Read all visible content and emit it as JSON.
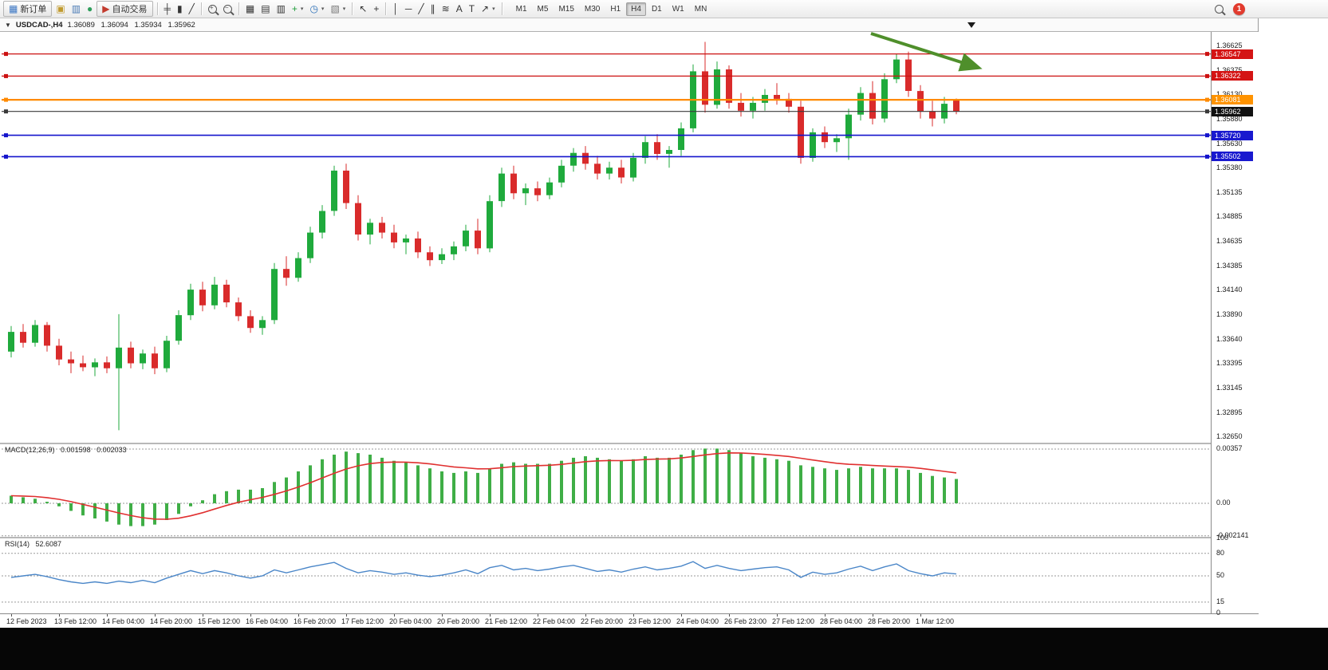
{
  "toolbar": {
    "notification_count": "1",
    "timeframes": [
      "M1",
      "M5",
      "M15",
      "M30",
      "H1",
      "H4",
      "D1",
      "W1",
      "MN"
    ],
    "active_timeframe": "H4",
    "items": [
      {
        "t": "btn",
        "name": "new-order-button",
        "icon": "▦",
        "icon_color": "#3a76c4",
        "label": "新订单"
      },
      {
        "t": "icon",
        "name": "metaeditor-icon",
        "glyph": "▣",
        "color": "#c09a2e"
      },
      {
        "t": "icon",
        "name": "market-watch-icon",
        "glyph": "▥",
        "color": "#4a7ab5"
      },
      {
        "t": "icon",
        "name": "data-window-icon",
        "glyph": "●",
        "color": "#2e9e5b"
      },
      {
        "t": "btn",
        "name": "autotrading-button",
        "icon": "▶",
        "icon_color": "#c23b2e",
        "label": "自动交易"
      },
      {
        "t": "sep"
      },
      {
        "t": "icon",
        "name": "bar-chart-mode-icon",
        "glyph": "╪"
      },
      {
        "t": "icon",
        "name": "candlestick-mode-icon",
        "glyph": "▮"
      },
      {
        "t": "icon",
        "name": "line-chart-mode-icon",
        "glyph": "╱"
      },
      {
        "t": "sep"
      },
      {
        "t": "mag",
        "name": "zoom-in-button",
        "label": "+"
      },
      {
        "t": "mag",
        "name": "zoom-out-button",
        "label": "−"
      },
      {
        "t": "sep"
      },
      {
        "t": "icon",
        "name": "tile-windows-icon",
        "glyph": "▦"
      },
      {
        "t": "icon",
        "name": "arrange-charts-icon",
        "glyph": "▤"
      },
      {
        "t": "icon",
        "name": "chart-list-icon",
        "glyph": "▥"
      },
      {
        "t": "icon",
        "name": "add-indicator-button",
        "glyph": "+",
        "color": "#1f9e3a",
        "caret": true
      },
      {
        "t": "icon",
        "name": "periods-button",
        "glyph": "◷",
        "color": "#2a6fb8",
        "caret": true
      },
      {
        "t": "icon",
        "name": "template-button",
        "glyph": "▧",
        "color": "#777777",
        "caret": true
      },
      {
        "t": "sep"
      },
      {
        "t": "icon",
        "name": "cursor-icon",
        "glyph": "↖"
      },
      {
        "t": "icon",
        "name": "crosshair-icon",
        "glyph": "+"
      },
      {
        "t": "sep"
      },
      {
        "t": "icon",
        "name": "vertical-line-tool-icon",
        "glyph": "│"
      },
      {
        "t": "icon",
        "name": "horizontal-line-tool-icon",
        "glyph": "─"
      },
      {
        "t": "icon",
        "name": "trendline-tool-icon",
        "glyph": "╱"
      },
      {
        "t": "icon",
        "name": "equidistant-channel-tool-icon",
        "glyph": "∥"
      },
      {
        "t": "icon",
        "name": "fibonacci-tool-icon",
        "glyph": "≋"
      },
      {
        "t": "icon",
        "name": "text-tool-icon",
        "glyph": "A"
      },
      {
        "t": "icon",
        "name": "label-tool-icon",
        "glyph": "T"
      },
      {
        "t": "icon",
        "name": "shapes-button",
        "glyph": "↗",
        "caret": true
      },
      {
        "t": "sep"
      }
    ]
  },
  "chart": {
    "symbol_period": "USDCAD-,H4",
    "open": "1.36089",
    "high": "1.36094",
    "low": "1.35934",
    "close": "1.35962"
  },
  "chart_data": {
    "type": "candlestick",
    "symbol": "USDCAD-",
    "timeframe": "H4",
    "bull_color": "#1faa3c",
    "bear_color": "#d92b2b",
    "price_ticks": [
      "1.36625",
      "1.36375",
      "1.36130",
      "1.35880",
      "1.35630",
      "1.35380",
      "1.35135",
      "1.34885",
      "1.34635",
      "1.34385",
      "1.34140",
      "1.33890",
      "1.33640",
      "1.33395",
      "1.33145",
      "1.32895",
      "1.32650"
    ],
    "x_labels": [
      "12 Feb 2023",
      "13 Feb 12:00",
      "14 Feb 04:00",
      "14 Feb 20:00",
      "15 Feb 12:00",
      "16 Feb 04:00",
      "16 Feb 20:00",
      "17 Feb 12:00",
      "20 Feb 04:00",
      "20 Feb 20:00",
      "21 Feb 12:00",
      "22 Feb 04:00",
      "22 Feb 20:00",
      "23 Feb 12:00",
      "24 Feb 04:00",
      "26 Feb 23:00",
      "27 Feb 12:00",
      "28 Feb 04:00",
      "28 Feb 20:00",
      "1 Mar 12:00"
    ],
    "candles": [
      [
        1.3352,
        1.3378,
        1.3346,
        1.3372
      ],
      [
        1.3372,
        1.338,
        1.3356,
        1.3361
      ],
      [
        1.3361,
        1.3384,
        1.3357,
        1.3379
      ],
      [
        1.3379,
        1.3382,
        1.3352,
        1.3358
      ],
      [
        1.3358,
        1.3365,
        1.3338,
        1.3344
      ],
      [
        1.3344,
        1.3352,
        1.333,
        1.334
      ],
      [
        1.334,
        1.3348,
        1.3332,
        1.3336
      ],
      [
        1.3336,
        1.3345,
        1.3327,
        1.3341
      ],
      [
        1.3341,
        1.3347,
        1.333,
        1.3335
      ],
      [
        1.3335,
        1.339,
        1.3272,
        1.3356
      ],
      [
        1.3356,
        1.3362,
        1.3335,
        1.334
      ],
      [
        1.334,
        1.3354,
        1.3334,
        1.335
      ],
      [
        1.335,
        1.3357,
        1.3329,
        1.3335
      ],
      [
        1.3335,
        1.3368,
        1.3331,
        1.3363
      ],
      [
        1.3363,
        1.3394,
        1.3359,
        1.3389
      ],
      [
        1.3389,
        1.3421,
        1.3384,
        1.3415
      ],
      [
        1.3415,
        1.3423,
        1.3393,
        1.3399
      ],
      [
        1.3399,
        1.3428,
        1.3395,
        1.342
      ],
      [
        1.342,
        1.3425,
        1.3397,
        1.3402
      ],
      [
        1.3402,
        1.3407,
        1.3383,
        1.3388
      ],
      [
        1.3388,
        1.3394,
        1.3371,
        1.3376
      ],
      [
        1.3376,
        1.3388,
        1.3369,
        1.3384
      ],
      [
        1.3384,
        1.3442,
        1.338,
        1.3436
      ],
      [
        1.3436,
        1.3449,
        1.3419,
        1.3427
      ],
      [
        1.3427,
        1.3453,
        1.3423,
        1.3447
      ],
      [
        1.3447,
        1.3479,
        1.3442,
        1.3473
      ],
      [
        1.3473,
        1.3501,
        1.3467,
        1.3495
      ],
      [
        1.3495,
        1.3541,
        1.349,
        1.3536
      ],
      [
        1.3536,
        1.3543,
        1.3497,
        1.3503
      ],
      [
        1.3503,
        1.3511,
        1.3465,
        1.3471
      ],
      [
        1.3471,
        1.3487,
        1.3461,
        1.3483
      ],
      [
        1.3483,
        1.3489,
        1.3467,
        1.3473
      ],
      [
        1.3473,
        1.3481,
        1.3457,
        1.3463
      ],
      [
        1.3463,
        1.3471,
        1.3451,
        1.3467
      ],
      [
        1.3467,
        1.3474,
        1.3447,
        1.3453
      ],
      [
        1.3453,
        1.3459,
        1.3439,
        1.3445
      ],
      [
        1.3445,
        1.3457,
        1.3441,
        1.3451
      ],
      [
        1.3451,
        1.3464,
        1.3445,
        1.3459
      ],
      [
        1.3459,
        1.3481,
        1.3454,
        1.3475
      ],
      [
        1.3475,
        1.3487,
        1.3451,
        1.3457
      ],
      [
        1.3457,
        1.3511,
        1.3453,
        1.3505
      ],
      [
        1.3505,
        1.3539,
        1.3499,
        1.3533
      ],
      [
        1.3533,
        1.3541,
        1.3507,
        1.3513
      ],
      [
        1.3513,
        1.3523,
        1.3501,
        1.3518
      ],
      [
        1.3518,
        1.3525,
        1.3505,
        1.3511
      ],
      [
        1.3511,
        1.3529,
        1.3507,
        1.3524
      ],
      [
        1.3524,
        1.3547,
        1.3519,
        1.3541
      ],
      [
        1.3541,
        1.3559,
        1.3535,
        1.3554
      ],
      [
        1.3554,
        1.3561,
        1.3537,
        1.3543
      ],
      [
        1.3543,
        1.3551,
        1.3527,
        1.3533
      ],
      [
        1.3533,
        1.3545,
        1.3527,
        1.3539
      ],
      [
        1.3539,
        1.3547,
        1.3523,
        1.3529
      ],
      [
        1.3529,
        1.3554,
        1.3525,
        1.3549
      ],
      [
        1.3549,
        1.3571,
        1.3543,
        1.3565
      ],
      [
        1.3565,
        1.3573,
        1.3547,
        1.3553
      ],
      [
        1.3553,
        1.3561,
        1.3539,
        1.3557
      ],
      [
        1.3557,
        1.3585,
        1.3551,
        1.3579
      ],
      [
        1.3579,
        1.3644,
        1.3575,
        1.3637
      ],
      [
        1.3637,
        1.3667,
        1.3595,
        1.3603
      ],
      [
        1.3603,
        1.3647,
        1.3599,
        1.3639
      ],
      [
        1.3639,
        1.3643,
        1.3599,
        1.3605
      ],
      [
        1.3605,
        1.3615,
        1.3591,
        1.3597
      ],
      [
        1.3597,
        1.3611,
        1.3589,
        1.3605
      ],
      [
        1.3605,
        1.3619,
        1.3597,
        1.3613
      ],
      [
        1.3613,
        1.3625,
        1.3603,
        1.3609
      ],
      [
        1.3609,
        1.3615,
        1.3595,
        1.3601
      ],
      [
        1.3601,
        1.3607,
        1.3543,
        1.3549
      ],
      [
        1.3549,
        1.3579,
        1.3545,
        1.3575
      ],
      [
        1.3575,
        1.3581,
        1.3559,
        1.3565
      ],
      [
        1.3565,
        1.3573,
        1.3555,
        1.3569
      ],
      [
        1.3569,
        1.3599,
        1.3547,
        1.3593
      ],
      [
        1.3593,
        1.3621,
        1.3587,
        1.3615
      ],
      [
        1.3615,
        1.3627,
        1.3583,
        1.3589
      ],
      [
        1.3589,
        1.3635,
        1.3585,
        1.3629
      ],
      [
        1.3629,
        1.3655,
        1.3625,
        1.3649
      ],
      [
        1.3649,
        1.3657,
        1.3611,
        1.3617
      ],
      [
        1.3617,
        1.3623,
        1.3589,
        1.3596
      ],
      [
        1.3596,
        1.3607,
        1.3581,
        1.3589
      ],
      [
        1.3589,
        1.3611,
        1.3584,
        1.3604
      ],
      [
        1.36089,
        1.36094,
        1.35934,
        1.35962
      ]
    ],
    "levels": [
      {
        "label": "1.36547",
        "price": 1.36547,
        "color": "#cc1111",
        "badge": "#d41414",
        "line_width": 1.3,
        "kind": "resistance-line"
      },
      {
        "label": "1.36322",
        "price": 1.36322,
        "color": "#cc1111",
        "badge": "#d41414",
        "line_width": 1.3,
        "kind": "resistance-line"
      },
      {
        "label": "1.36081",
        "price": 1.36081,
        "color": "#ff8a00",
        "badge": "#ff9300",
        "line_width": 2.2,
        "kind": "pivot-line"
      },
      {
        "label": "1.35962",
        "price": 1.35962,
        "color": "#3a3a3a",
        "badge": "#111111",
        "line_width": 1.2,
        "kind": "current-price-line"
      },
      {
        "label": "1.35720",
        "price": 1.3572,
        "color": "#1414cc",
        "badge": "#1919cf",
        "line_width": 1.6,
        "kind": "support-line"
      },
      {
        "label": "1.35502",
        "price": 1.35502,
        "color": "#1414cc",
        "badge": "#1919cf",
        "line_width": 1.6,
        "kind": "support-line"
      }
    ],
    "annotations": [
      {
        "type": "arrow",
        "color": "#4f8f2b",
        "direction": "down-right"
      }
    ],
    "indicators": {
      "macd": {
        "name": "MACD(12,26,9)",
        "value": "0.001598",
        "signal_value": "0.002033",
        "scale": [
          "0.00357",
          "0.00",
          "-0.002141"
        ],
        "histogram_color": "#3fae46",
        "signal_color": "#e03030",
        "histogram": [
          0.0005,
          0.0004,
          0.0003,
          0.0001,
          -0.0002,
          -0.0005,
          -0.0008,
          -0.001,
          -0.0012,
          -0.0014,
          -0.0015,
          -0.0015,
          -0.0014,
          -0.0011,
          -0.0007,
          -0.0002,
          0.0002,
          0.0006,
          0.0008,
          0.0009,
          0.0009,
          0.001,
          0.0014,
          0.0017,
          0.0021,
          0.0025,
          0.0029,
          0.0032,
          0.0034,
          0.0033,
          0.0032,
          0.003,
          0.0028,
          0.0027,
          0.0025,
          0.0023,
          0.0021,
          0.002,
          0.0021,
          0.002,
          0.0023,
          0.0026,
          0.0027,
          0.0026,
          0.0026,
          0.0026,
          0.0028,
          0.003,
          0.0031,
          0.003,
          0.0029,
          0.0028,
          0.0029,
          0.0031,
          0.003,
          0.003,
          0.0032,
          0.0035,
          0.0036,
          0.0036,
          0.0035,
          0.0033,
          0.0031,
          0.003,
          0.0029,
          0.0028,
          0.0025,
          0.0024,
          0.0023,
          0.0022,
          0.0023,
          0.0024,
          0.0023,
          0.0023,
          0.0023,
          0.0022,
          0.002,
          0.0018,
          0.0017,
          0.0016
        ]
      },
      "rsi": {
        "name": "RSI(14)",
        "value": "52.6087",
        "scale": [
          "100",
          "80",
          "50",
          "15",
          "0"
        ],
        "levels": [
          80,
          50,
          15
        ],
        "line_color": "#4a86c8",
        "values": [
          48,
          50,
          52,
          49,
          45,
          42,
          40,
          42,
          40,
          43,
          41,
          44,
          41,
          47,
          52,
          57,
          53,
          57,
          54,
          50,
          47,
          50,
          58,
          54,
          58,
          62,
          65,
          68,
          60,
          54,
          57,
          55,
          52,
          54,
          51,
          49,
          51,
          54,
          58,
          53,
          61,
          64,
          58,
          60,
          57,
          59,
          62,
          64,
          60,
          56,
          58,
          55,
          59,
          62,
          58,
          60,
          63,
          69,
          60,
          64,
          60,
          57,
          59,
          61,
          62,
          58,
          48,
          55,
          52,
          54,
          59,
          63,
          57,
          62,
          66,
          57,
          53,
          50,
          54,
          52.6
        ]
      }
    }
  }
}
